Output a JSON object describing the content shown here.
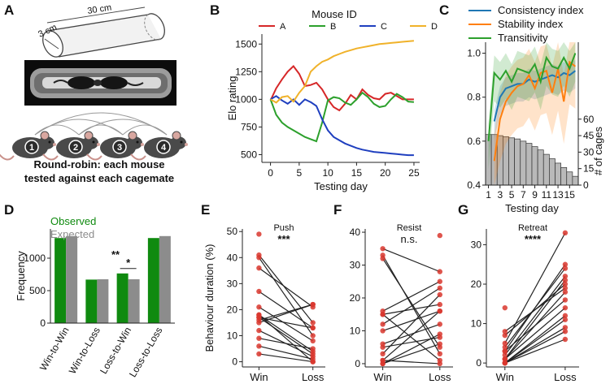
{
  "panels": {
    "A": {
      "letter": "A",
      "tube_length": "30 cm",
      "tube_diameter": "3 cm",
      "mouse_numbers": [
        "1",
        "2",
        "3",
        "4"
      ],
      "caption_line1": "Round-robin: each mouse",
      "caption_line2": "tested against each cagemate"
    },
    "B": {
      "letter": "B"
    },
    "C": {
      "letter": "C"
    },
    "D": {
      "letter": "D"
    },
    "E": {
      "letter": "E"
    },
    "F": {
      "letter": "F"
    },
    "G": {
      "letter": "G"
    }
  },
  "colors": {
    "A": "#d62728",
    "B": "#2ca02c",
    "C": "#1f3fbf",
    "D": "#f0b22a",
    "consistency": "#1f77b4",
    "stability": "#ff7f0e",
    "transitivity": "#2ca02c",
    "observed": "#0f8a0f",
    "expected": "#8c8c8c",
    "dot": "#d9372e"
  },
  "chart_data": [
    {
      "panel": "B",
      "type": "line",
      "legend_title": "Mouse ID",
      "xlabel": "Testing day",
      "ylabel": "Elo rating",
      "xlim": [
        -1.5,
        26
      ],
      "ylim": [
        430,
        1590
      ],
      "xticks": [
        0,
        5,
        10,
        15,
        20,
        25
      ],
      "yticks": [
        500,
        750,
        1000,
        1250,
        1500
      ],
      "x": [
        0,
        1,
        2,
        3,
        4,
        5,
        6,
        7,
        8,
        9,
        10,
        11,
        12,
        13,
        14,
        15,
        16,
        17,
        18,
        19,
        20,
        21,
        22,
        23,
        24,
        25
      ],
      "series": [
        {
          "name": "A",
          "color": "#d62728",
          "values": [
            990,
            1100,
            1180,
            1250,
            1300,
            1230,
            1120,
            1130,
            1150,
            1090,
            1000,
            930,
            900,
            960,
            1040,
            1000,
            1090,
            1040,
            1010,
            1000,
            1050,
            1060,
            1030,
            1000,
            1000,
            1000
          ]
        },
        {
          "name": "B",
          "color": "#2ca02c",
          "values": [
            1000,
            860,
            790,
            750,
            720,
            690,
            660,
            640,
            620,
            790,
            990,
            1020,
            1010,
            970,
            950,
            1000,
            1060,
            1020,
            960,
            930,
            940,
            1000,
            1050,
            1020,
            980,
            975
          ]
        },
        {
          "name": "C",
          "color": "#1f3fbf",
          "values": [
            1000,
            1030,
            990,
            960,
            1000,
            950,
            1000,
            975,
            940,
            820,
            720,
            660,
            630,
            600,
            580,
            560,
            545,
            535,
            525,
            520,
            515,
            510,
            505,
            500,
            495,
            495
          ]
        },
        {
          "name": "D",
          "color": "#f0b22a",
          "values": [
            1000,
            970,
            1020,
            1030,
            980,
            1060,
            1120,
            1250,
            1300,
            1340,
            1360,
            1390,
            1410,
            1430,
            1445,
            1460,
            1470,
            1480,
            1490,
            1500,
            1505,
            1510,
            1515,
            1520,
            1525,
            1530
          ]
        }
      ]
    },
    {
      "panel": "C",
      "type": "line",
      "xlabel": "Testing day",
      "ylabel_right": "# of cages",
      "xlim": [
        0.5,
        16.5
      ],
      "ylim": [
        0.4,
        1.05
      ],
      "xticks": [
        1,
        3,
        5,
        7,
        9,
        11,
        13,
        15
      ],
      "yticks": [
        0.4,
        0.6,
        0.8,
        1.0
      ],
      "right_yticks": [
        0,
        15,
        30,
        45,
        60
      ],
      "right_ylim": [
        0,
        130
      ],
      "x": [
        1,
        2,
        3,
        4,
        5,
        6,
        7,
        8,
        9,
        10,
        11,
        12,
        13,
        14,
        15,
        16
      ],
      "series": [
        {
          "name": "Consistency index",
          "color": "#1f77b4",
          "values": [
            null,
            0.69,
            0.8,
            0.84,
            0.85,
            0.86,
            0.86,
            0.88,
            0.87,
            0.88,
            0.89,
            0.9,
            0.89,
            0.91,
            0.9,
            0.92
          ],
          "band": 0.05
        },
        {
          "name": "Stability index",
          "color": "#ff7f0e",
          "values": [
            null,
            0.51,
            0.7,
            0.78,
            0.82,
            0.85,
            0.86,
            0.9,
            0.84,
            0.91,
            0.92,
            0.82,
            0.93,
            0.78,
            0.96,
            0.94
          ],
          "band": 0.12
        },
        {
          "name": "Transitivity",
          "color": "#2ca02c",
          "values": [
            0.6,
            0.91,
            0.88,
            0.92,
            0.87,
            0.93,
            0.92,
            0.91,
            0.95,
            0.87,
            0.98,
            0.94,
            0.93,
            0.98,
            0.93,
            1.0
          ],
          "band": 0.08
        }
      ],
      "cages": [
        46,
        46,
        45,
        44,
        43,
        42,
        40,
        38,
        35,
        32,
        28,
        24,
        20,
        16,
        12,
        8
      ]
    },
    {
      "panel": "D",
      "type": "bar",
      "ylabel": "Frequency",
      "ylim": [
        0,
        1450
      ],
      "yticks": [
        0,
        500,
        1000
      ],
      "categories": [
        "Win-to-Win",
        "Win-to-Loss",
        "Loss-to-Win",
        "Loss-to-Loss"
      ],
      "series": [
        {
          "name": "Observed",
          "color": "#0f8a0f",
          "values": [
            1310,
            670,
            765,
            1310
          ]
        },
        {
          "name": "Expected",
          "color": "#8c8c8c",
          "values": [
            1340,
            675,
            675,
            1340
          ]
        }
      ],
      "annotations": [
        "**",
        "*"
      ]
    },
    {
      "panel": "E",
      "type": "scatter",
      "title": "Push",
      "significance": "***",
      "ylabel": "Behaviour duration (%)",
      "categories": [
        "Win",
        "Loss"
      ],
      "ylim": [
        -2,
        51
      ],
      "yticks": [
        0,
        10,
        20,
        30,
        40,
        50
      ],
      "pairs": [
        [
          49,
          null
        ],
        [
          41,
          15
        ],
        [
          40,
          10
        ],
        [
          36,
          21
        ],
        [
          27,
          13
        ],
        [
          21,
          8
        ],
        [
          18,
          4
        ],
        [
          18,
          0
        ],
        [
          17,
          3
        ],
        [
          17,
          13
        ],
        [
          16,
          22
        ],
        [
          15,
          22
        ],
        [
          12,
          2
        ],
        [
          9,
          5
        ],
        [
          6,
          1
        ],
        [
          3,
          0
        ]
      ]
    },
    {
      "panel": "F",
      "type": "scatter",
      "title": "Resist",
      "significance": "n.s.",
      "categories": [
        "Win",
        "Loss"
      ],
      "ylim": [
        -1,
        41
      ],
      "yticks": [
        0,
        10,
        20,
        30,
        40
      ],
      "pairs": [
        [
          35,
          28
        ],
        [
          33,
          3
        ],
        [
          32,
          5
        ],
        [
          16,
          25
        ],
        [
          15,
          1
        ],
        [
          15,
          18
        ],
        [
          12,
          23
        ],
        [
          10,
          16
        ],
        [
          6,
          12
        ],
        [
          5,
          8
        ],
        [
          3,
          21
        ],
        [
          1,
          16
        ],
        [
          1,
          0
        ],
        [
          0,
          6
        ],
        [
          0,
          9
        ],
        [
          null,
          39
        ]
      ]
    },
    {
      "panel": "G",
      "type": "scatter",
      "title": "Retreat",
      "significance": "****",
      "categories": [
        "Win",
        "Loss"
      ],
      "ylim": [
        -1,
        34
      ],
      "yticks": [
        0,
        10,
        20,
        30
      ],
      "pairs": [
        [
          14,
          null
        ],
        [
          8,
          19
        ],
        [
          7,
          20
        ],
        [
          5,
          33
        ],
        [
          4,
          24
        ],
        [
          3,
          25
        ],
        [
          3,
          16
        ],
        [
          2,
          22
        ],
        [
          1,
          21
        ],
        [
          1,
          14
        ],
        [
          1,
          18
        ],
        [
          0,
          12
        ],
        [
          0,
          8
        ],
        [
          0,
          6
        ],
        [
          0,
          9
        ],
        [
          0,
          11
        ]
      ]
    }
  ]
}
